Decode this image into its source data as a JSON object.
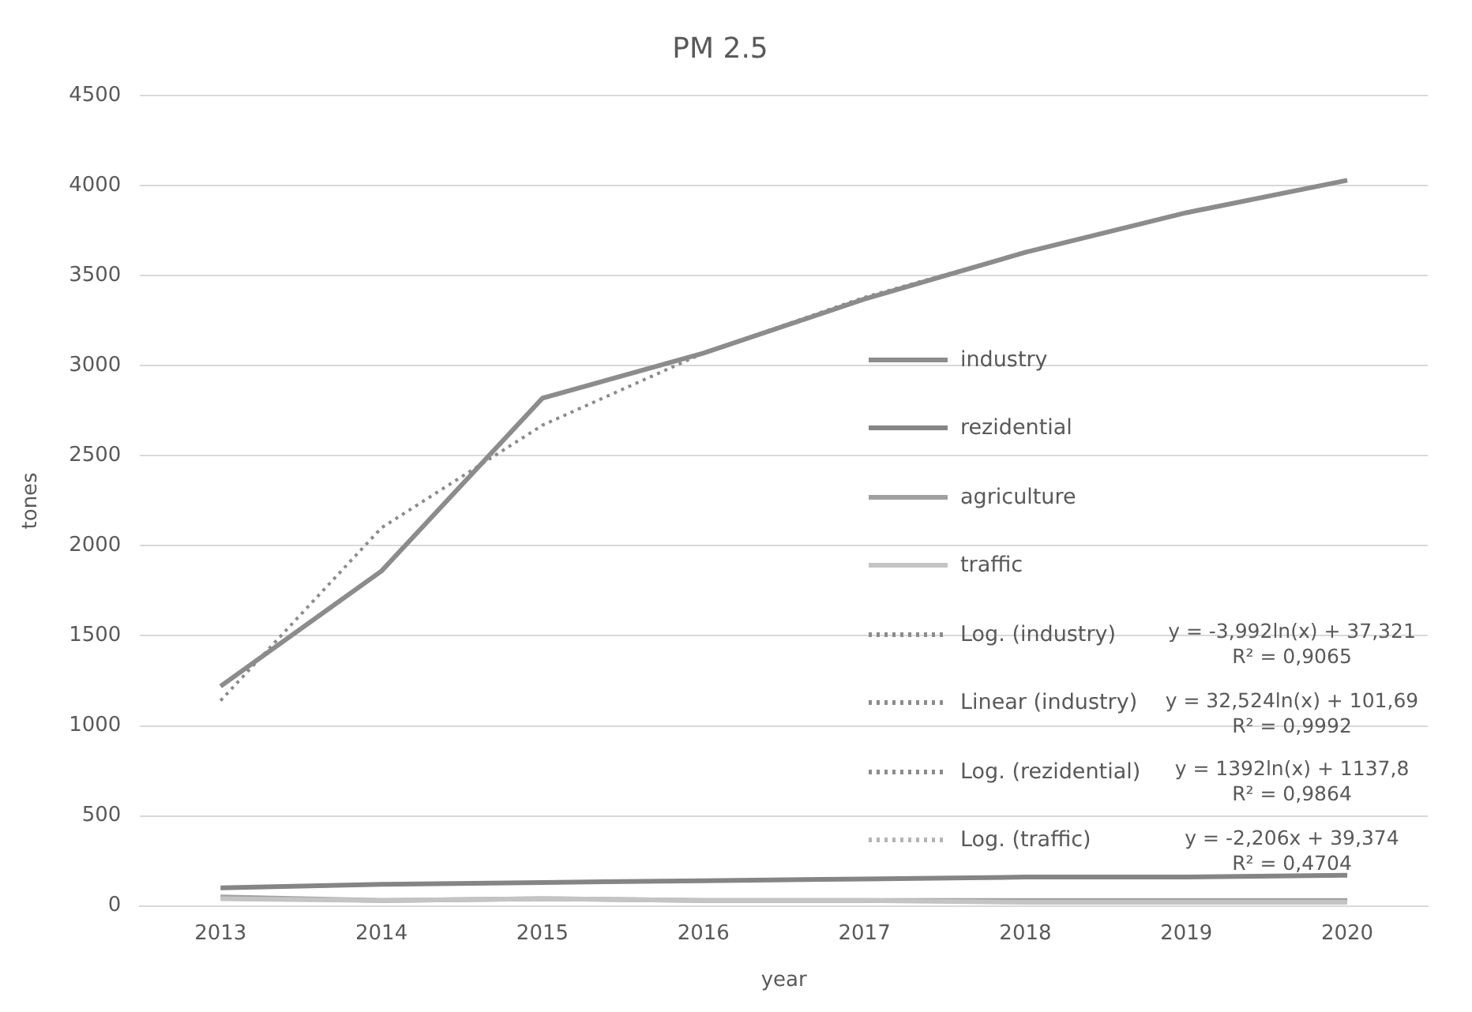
{
  "chart_data": {
    "type": "line",
    "title": "PM 2.5",
    "xlabel": "year",
    "ylabel": "tones",
    "categories": [
      "2013",
      "2014",
      "2015",
      "2016",
      "2017",
      "2018",
      "2019",
      "2020"
    ],
    "series": [
      {
        "name": "industry",
        "color": "#8c8c8c",
        "line_style": "solid",
        "values": [
          1220,
          1860,
          2820,
          3070,
          3370,
          3630,
          3850,
          4030
        ]
      },
      {
        "name": "rezidential",
        "color": "#858585",
        "line_style": "solid",
        "values": [
          100,
          120,
          130,
          140,
          150,
          160,
          160,
          170
        ]
      },
      {
        "name": "agriculture",
        "color": "#a0a0a0",
        "line_style": "solid",
        "values": [
          50,
          30,
          40,
          30,
          30,
          30,
          30,
          30
        ]
      },
      {
        "name": "traffic",
        "color": "#c4c4c4",
        "line_style": "solid",
        "values": [
          40,
          30,
          40,
          30,
          30,
          20,
          20,
          20
        ]
      },
      {
        "name": "Log. (industry)",
        "color": "#8c8c8c",
        "line_style": "dotted",
        "values": [
          1140,
          2100,
          2670,
          3070,
          3380,
          3630,
          3850,
          4030
        ]
      },
      {
        "name": "Linear (industry)",
        "color": "#8c8c8c",
        "line_style": "dotted",
        "values": [
          null,
          null,
          null,
          null,
          null,
          null,
          null,
          null
        ]
      },
      {
        "name": "Log. (rezidential)",
        "color": "#8c8c8c",
        "line_style": "dotted",
        "values": [
          null,
          null,
          null,
          null,
          null,
          null,
          null,
          null
        ]
      },
      {
        "name": "Log. (traffic)",
        "color": "#b4b4b4",
        "line_style": "dotted",
        "values": [
          null,
          null,
          null,
          null,
          null,
          null,
          null,
          null
        ]
      }
    ],
    "ylim": [
      0,
      4500
    ],
    "yticks": [
      0,
      500,
      1000,
      1500,
      2000,
      2500,
      3000,
      3500,
      4000,
      4500
    ],
    "grid": "y",
    "legend": "right",
    "marker": "none",
    "annotations": [
      "y = -3,992ln(x) + 37,321\nR² = 0,9065",
      "y = 32,524ln(x) + 101,69\nR² = 0,9992",
      "y = 1392ln(x) + 1137,8\nR² = 0,9864",
      "y = -2,206x + 39,374\nR² = 0,4704"
    ]
  }
}
